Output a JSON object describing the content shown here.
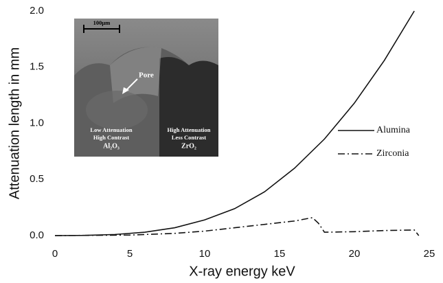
{
  "chart_data": {
    "type": "line",
    "x_label": "X-ray energy keV",
    "y_label": "Attenuation length in mm",
    "xlim": [
      0,
      25
    ],
    "xticks": [
      0,
      5,
      10,
      15,
      20,
      25
    ],
    "ylim": [
      0,
      2
    ],
    "yticks": [
      {
        "value": 0,
        "label": "0.0"
      },
      {
        "value": 0.5,
        "label": "0.5"
      },
      {
        "value": 1,
        "label": "1.0"
      },
      {
        "value": 1.5,
        "label": "1.5"
      },
      {
        "value": 2,
        "label": "2.0"
      }
    ],
    "series": [
      {
        "name": "Alumina",
        "color": "#111111",
        "dash": "solid",
        "x": [
          0,
          2,
          4,
          6,
          8,
          10,
          12,
          14,
          16,
          18,
          20,
          22,
          24
        ],
        "values": [
          0.0,
          0.002,
          0.01,
          0.03,
          0.07,
          0.14,
          0.24,
          0.39,
          0.6,
          0.86,
          1.18,
          1.56,
          2.0
        ]
      },
      {
        "name": "Zirconia",
        "color": "#111111",
        "dash": "dashdot",
        "x": [
          0,
          5,
          8,
          10,
          12,
          14,
          16,
          17.2,
          17.6,
          18,
          20,
          22,
          24,
          24.3
        ],
        "values": [
          0.0,
          0.005,
          0.02,
          0.04,
          0.07,
          0.1,
          0.13,
          0.16,
          0.11,
          0.03,
          0.035,
          0.045,
          0.05,
          0.0
        ]
      }
    ],
    "inset": {
      "scale_bar": "100μm",
      "pore": "Pore",
      "left": [
        "Low Attenuation",
        "High Contrast",
        "Al₂O₃"
      ],
      "right": [
        "High Attenuation",
        "Less Contrast",
        "ZrO₂"
      ]
    }
  }
}
